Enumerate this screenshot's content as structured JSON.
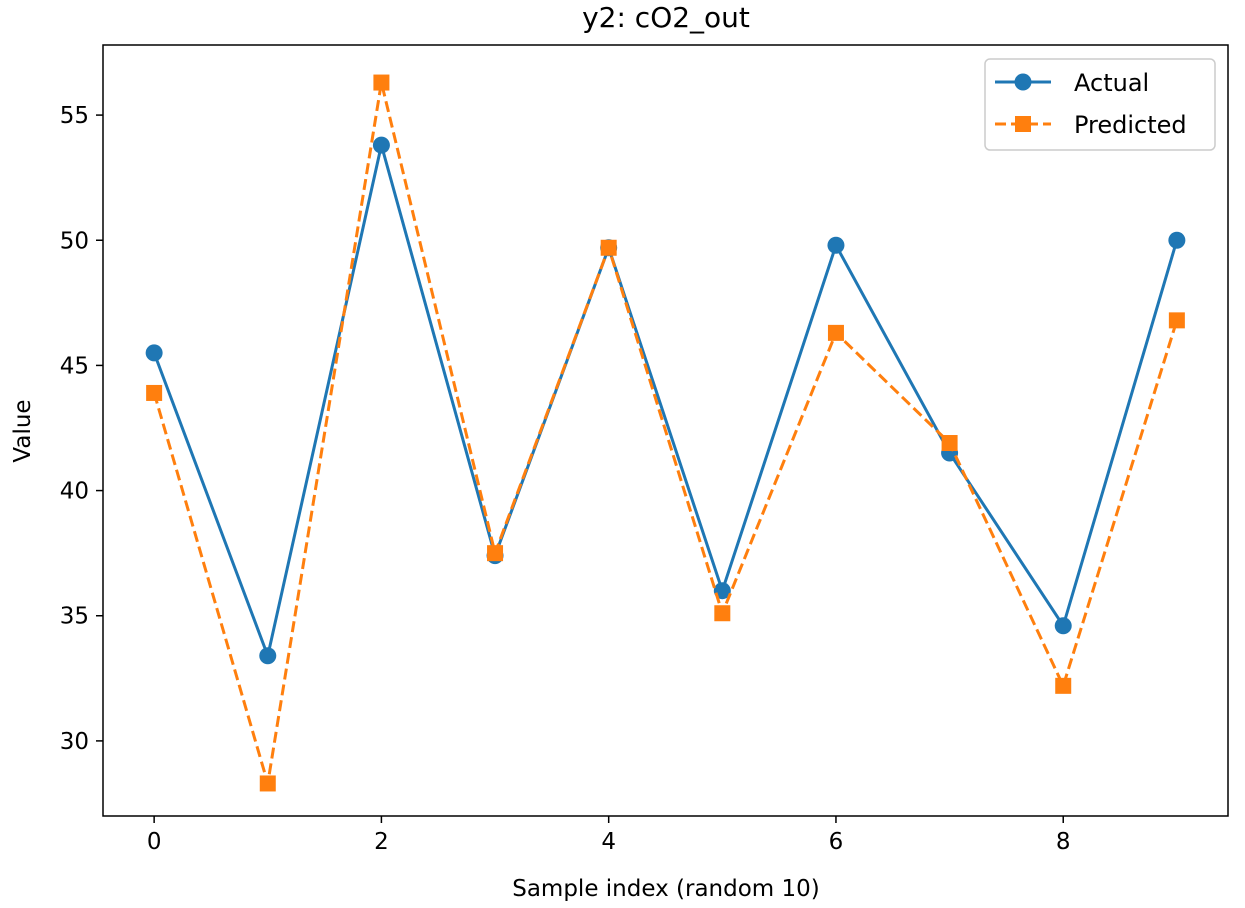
{
  "chart_data": {
    "type": "line",
    "title": "y2: cO2_out",
    "xlabel": "Sample index (random 10)",
    "ylabel": "Value",
    "x": [
      0,
      1,
      2,
      3,
      4,
      5,
      6,
      7,
      8,
      9
    ],
    "xlim": [
      -0.45,
      9.45
    ],
    "ylim": [
      27.0,
      57.8
    ],
    "xticks": [
      0,
      2,
      4,
      6,
      8
    ],
    "yticks": [
      30,
      35,
      40,
      45,
      50,
      55
    ],
    "grid": false,
    "legend_position": "top-right",
    "series": [
      {
        "name": "Actual",
        "values": [
          45.5,
          33.4,
          53.8,
          37.4,
          49.7,
          36.0,
          49.8,
          41.5,
          34.6,
          50.0
        ],
        "color": "#1f77b4",
        "linestyle": "solid",
        "marker": "circle"
      },
      {
        "name": "Predicted",
        "values": [
          43.9,
          28.3,
          56.3,
          37.5,
          49.7,
          35.1,
          46.3,
          41.9,
          32.2,
          46.8
        ],
        "color": "#ff7f0e",
        "linestyle": "dashed",
        "marker": "square"
      }
    ]
  }
}
